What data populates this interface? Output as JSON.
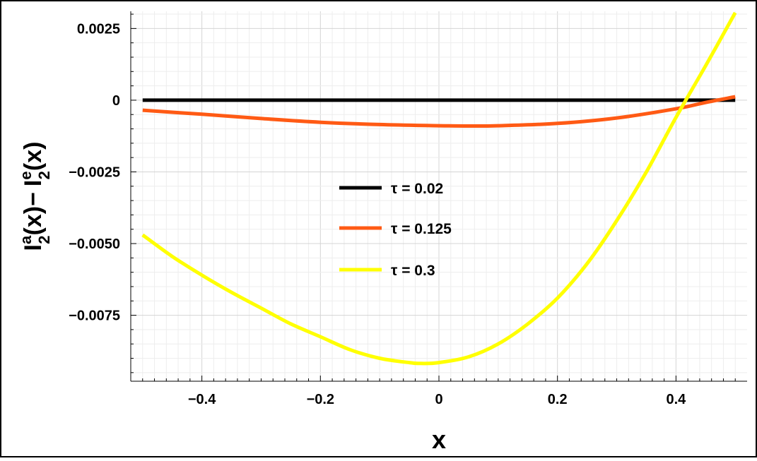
{
  "chart_data": {
    "type": "line",
    "title": "",
    "xlabel": "x",
    "ylabel": {
      "base": "I",
      "sup_a": "a",
      "sub_a": "2",
      "arg_a": "(x)",
      "minus": "−",
      "sup_e": "e",
      "sub_e": "2",
      "arg_e": "(x)"
    },
    "xlim": [
      -0.52,
      0.52
    ],
    "ylim": [
      -0.0098,
      0.0031
    ],
    "grid": true,
    "legend_position": "center",
    "x_ticks": [
      {
        "value": -0.4,
        "label": "−0.4"
      },
      {
        "value": -0.2,
        "label": "−0.2"
      },
      {
        "value": 0,
        "label": "0"
      },
      {
        "value": 0.2,
        "label": "0.2"
      },
      {
        "value": 0.4,
        "label": "0.4"
      }
    ],
    "y_ticks": [
      {
        "value": 0.0025,
        "label": "0.0025"
      },
      {
        "value": 0,
        "label": "0"
      },
      {
        "value": -0.0025,
        "label": "−0.0025"
      },
      {
        "value": -0.005,
        "label": "−0.0050"
      },
      {
        "value": -0.0075,
        "label": "−0.0075"
      }
    ],
    "series": [
      {
        "name": "τ = 0.02",
        "color": "#000000",
        "x": [
          -0.5,
          -0.4,
          -0.3,
          -0.2,
          -0.1,
          0,
          0.1,
          0.2,
          0.3,
          0.4,
          0.5
        ],
        "y": [
          0,
          0,
          0,
          0,
          0,
          0,
          0,
          0,
          0,
          0,
          0
        ]
      },
      {
        "name": "τ = 0.125",
        "color": "#ff5a14",
        "x": [
          -0.5,
          -0.4,
          -0.3,
          -0.2,
          -0.1,
          0,
          0.05,
          0.1,
          0.2,
          0.3,
          0.4,
          0.45,
          0.5
        ],
        "y": [
          -0.00035,
          -0.00049,
          -0.00064,
          -0.00077,
          -0.00085,
          -0.00089,
          -0.0009,
          -0.00089,
          -0.00081,
          -0.00062,
          -0.0003,
          -8e-05,
          0.00012
        ]
      },
      {
        "name": "τ = 0.3",
        "color": "#ffff00",
        "x": [
          -0.5,
          -0.45,
          -0.4,
          -0.35,
          -0.3,
          -0.25,
          -0.2,
          -0.15,
          -0.1,
          -0.05,
          -0.03,
          0,
          0.05,
          0.1,
          0.15,
          0.2,
          0.25,
          0.3,
          0.35,
          0.4,
          0.45,
          0.5
        ],
        "y": [
          -0.0047,
          -0.00545,
          -0.0061,
          -0.0067,
          -0.00725,
          -0.0078,
          -0.00825,
          -0.0087,
          -0.009,
          -0.00915,
          -0.00918,
          -0.00915,
          -0.00895,
          -0.0085,
          -0.0078,
          -0.0069,
          -0.0057,
          -0.0042,
          -0.0025,
          -0.0006,
          0.0012,
          0.00305
        ]
      }
    ]
  }
}
